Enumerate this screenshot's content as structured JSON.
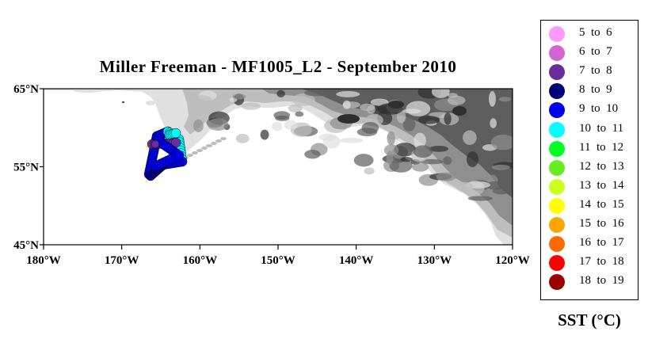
{
  "title": "Miller Freeman - MF1005_L2 - September 2010",
  "axes": {
    "lon_ticks": [
      "180°W",
      "170°W",
      "160°W",
      "150°W",
      "140°W",
      "130°W",
      "120°W"
    ],
    "lat_ticks": [
      "65°N",
      "55°N",
      "45°N"
    ],
    "lon_range": [
      -180,
      -120
    ],
    "lat_range": [
      45,
      65
    ]
  },
  "legend": {
    "title": "SST (°C)",
    "items": [
      {
        "label": "5  to  6",
        "color": "#ff99ff"
      },
      {
        "label": "6  to  7",
        "color": "#d166d1"
      },
      {
        "label": "7  to  8",
        "color": "#6a2d9e"
      },
      {
        "label": "8  to  9",
        "color": "#00007a"
      },
      {
        "label": "9  to  10",
        "color": "#0000ee"
      },
      {
        "label": "10  to  11",
        "color": "#00ffff"
      },
      {
        "label": "11  to  12",
        "color": "#00ff22"
      },
      {
        "label": "12  to  13",
        "color": "#66ee22"
      },
      {
        "label": "13  to  14",
        "color": "#ccff22"
      },
      {
        "label": "14  to  15",
        "color": "#ffff00"
      },
      {
        "label": "15  to  16",
        "color": "#ffa500"
      },
      {
        "label": "16  to  17",
        "color": "#ff6a00"
      },
      {
        "label": "17  to  18",
        "color": "#ff0000"
      },
      {
        "label": "18  to  19",
        "color": "#990000"
      }
    ]
  },
  "colors": {
    "land_light": "#e0e0e0",
    "land_mid": "#bdbdbd",
    "land_dark": "#8f8f8f",
    "land_darker": "#5e5e5e",
    "land_darkest": "#2f2f2f"
  }
}
